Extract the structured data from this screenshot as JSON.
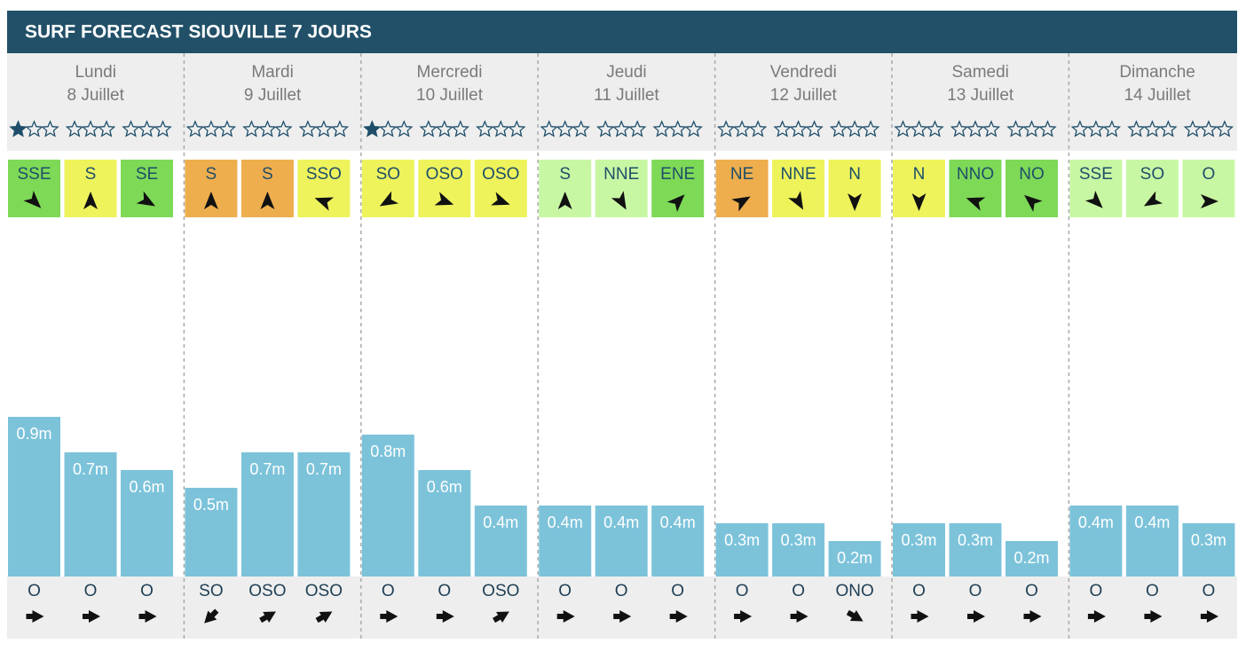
{
  "header": {
    "title": "SURF FORECAST SIOUVILLE 7 JOURS"
  },
  "days": [
    {
      "day": "Lundi",
      "date": "8 Juillet",
      "slots": [
        {
          "stars": 1,
          "wind": "SSE",
          "wind_color": "#7ed957",
          "wind_angle": 135,
          "wave": 0.9,
          "wave_label": "0.9m",
          "swell": "O",
          "swell_angle": 90
        },
        {
          "stars": 0,
          "wind": "S",
          "wind_color": "#eef35c",
          "wind_angle": 0,
          "wave": 0.7,
          "wave_label": "0.7m",
          "swell": "O",
          "swell_angle": 90
        },
        {
          "stars": 0,
          "wind": "SE",
          "wind_color": "#7ed957",
          "wind_angle": 120,
          "wave": 0.6,
          "wave_label": "0.6m",
          "swell": "O",
          "swell_angle": 90
        }
      ]
    },
    {
      "day": "Mardi",
      "date": "9 Juillet",
      "slots": [
        {
          "stars": 0,
          "wind": "S",
          "wind_color": "#eeae4e",
          "wind_angle": 0,
          "wave": 0.5,
          "wave_label": "0.5m",
          "swell": "SO",
          "swell_angle": 225
        },
        {
          "stars": 0,
          "wind": "S",
          "wind_color": "#eeae4e",
          "wind_angle": 0,
          "wave": 0.7,
          "wave_label": "0.7m",
          "swell": "OSO",
          "swell_angle": 60
        },
        {
          "stars": 0,
          "wind": "SSO",
          "wind_color": "#eef35c",
          "wind_angle": 290,
          "wave": 0.7,
          "wave_label": "0.7m",
          "swell": "OSO",
          "swell_angle": 60
        }
      ]
    },
    {
      "day": "Mercredi",
      "date": "10 Juillet",
      "slots": [
        {
          "stars": 1,
          "wind": "SO",
          "wind_color": "#eef35c",
          "wind_angle": 240,
          "wave": 0.8,
          "wave_label": "0.8m",
          "swell": "O",
          "swell_angle": 90
        },
        {
          "stars": 0,
          "wind": "OSO",
          "wind_color": "#eef35c",
          "wind_angle": 110,
          "wave": 0.6,
          "wave_label": "0.6m",
          "swell": "O",
          "swell_angle": 90
        },
        {
          "stars": 0,
          "wind": "OSO",
          "wind_color": "#eef35c",
          "wind_angle": 110,
          "wave": 0.4,
          "wave_label": "0.4m",
          "swell": "OSO",
          "swell_angle": 60
        }
      ]
    },
    {
      "day": "Jeudi",
      "date": "11 Juillet",
      "slots": [
        {
          "stars": 0,
          "wind": "S",
          "wind_color": "#c8f7a4",
          "wind_angle": 0,
          "wave": 0.4,
          "wave_label": "0.4m",
          "swell": "O",
          "swell_angle": 90
        },
        {
          "stars": 0,
          "wind": "NNE",
          "wind_color": "#c8f7a4",
          "wind_angle": 150,
          "wave": 0.4,
          "wave_label": "0.4m",
          "swell": "O",
          "swell_angle": 90
        },
        {
          "stars": 0,
          "wind": "ENE",
          "wind_color": "#7ed957",
          "wind_angle": 45,
          "wave": 0.4,
          "wave_label": "0.4m",
          "swell": "O",
          "swell_angle": 90
        }
      ]
    },
    {
      "day": "Vendredi",
      "date": "12 Juillet",
      "slots": [
        {
          "stars": 0,
          "wind": "NE",
          "wind_color": "#eeae4e",
          "wind_angle": 60,
          "wave": 0.3,
          "wave_label": "0.3m",
          "swell": "O",
          "swell_angle": 90
        },
        {
          "stars": 0,
          "wind": "NNE",
          "wind_color": "#eef35c",
          "wind_angle": 150,
          "wave": 0.3,
          "wave_label": "0.3m",
          "swell": "O",
          "swell_angle": 90
        },
        {
          "stars": 0,
          "wind": "N",
          "wind_color": "#eef35c",
          "wind_angle": 180,
          "wave": 0.2,
          "wave_label": "0.2m",
          "swell": "ONO",
          "swell_angle": 120
        }
      ]
    },
    {
      "day": "Samedi",
      "date": "13 Juillet",
      "slots": [
        {
          "stars": 0,
          "wind": "N",
          "wind_color": "#eef35c",
          "wind_angle": 180,
          "wave": 0.3,
          "wave_label": "0.3m",
          "swell": "O",
          "swell_angle": 90
        },
        {
          "stars": 0,
          "wind": "NNO",
          "wind_color": "#7ed957",
          "wind_angle": 290,
          "wave": 0.3,
          "wave_label": "0.3m",
          "swell": "O",
          "swell_angle": 90
        },
        {
          "stars": 0,
          "wind": "NO",
          "wind_color": "#7ed957",
          "wind_angle": 310,
          "wave": 0.2,
          "wave_label": "0.2m",
          "swell": "O",
          "swell_angle": 90
        }
      ]
    },
    {
      "day": "Dimanche",
      "date": "14 Juillet",
      "slots": [
        {
          "stars": 0,
          "wind": "SSE",
          "wind_color": "#c8f7a4",
          "wind_angle": 135,
          "wave": 0.4,
          "wave_label": "0.4m",
          "swell": "O",
          "swell_angle": 90
        },
        {
          "stars": 0,
          "wind": "SO",
          "wind_color": "#c8f7a4",
          "wind_angle": 240,
          "wave": 0.4,
          "wave_label": "0.4m",
          "swell": "O",
          "swell_angle": 90
        },
        {
          "stars": 0,
          "wind": "O",
          "wind_color": "#c8f7a4",
          "wind_angle": 90,
          "wave": 0.3,
          "wave_label": "0.3m",
          "swell": "O",
          "swell_angle": 90
        }
      ]
    }
  ]
}
